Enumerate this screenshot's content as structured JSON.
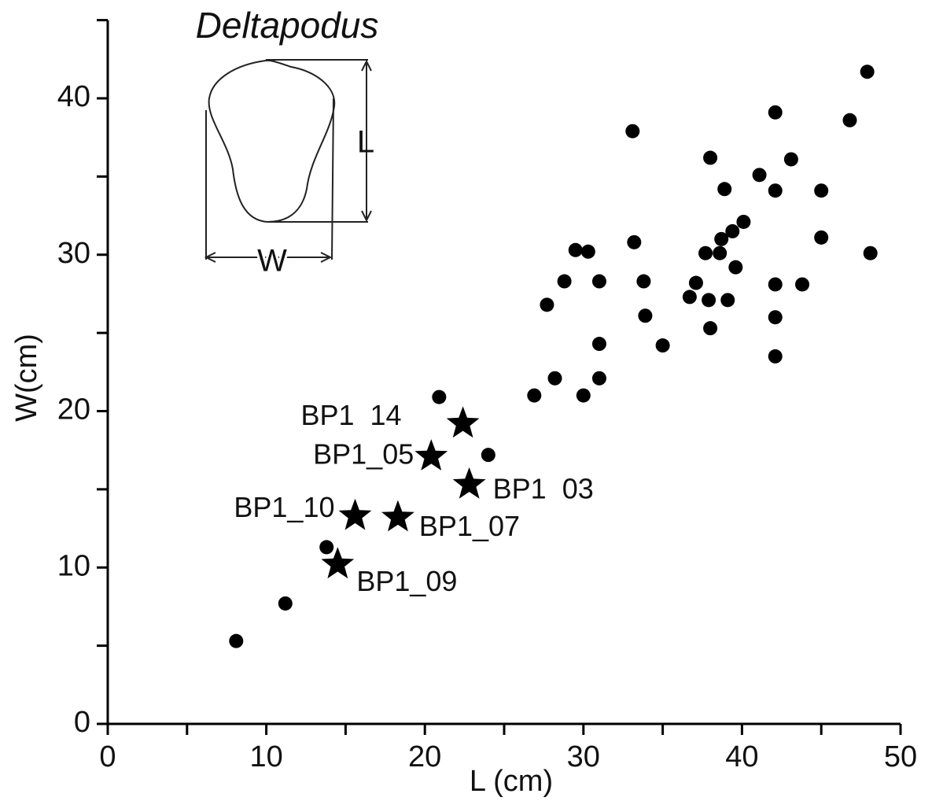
{
  "chart_data": {
    "type": "scatter",
    "x_label": "L (cm)",
    "y_label": "W(cm)",
    "xlim": [
      0,
      50
    ],
    "xticks": [
      0,
      10,
      20,
      30,
      40,
      50
    ],
    "minor_xticks": [
      5,
      15,
      25,
      35,
      45
    ],
    "ylim": [
      0,
      45
    ],
    "yticks": [
      0,
      10,
      20,
      30,
      40
    ],
    "minor_yticks": [
      5,
      15,
      25,
      35,
      45
    ],
    "color": "#000000",
    "grid": false,
    "points": {
      "marker": "circle",
      "x": [
        8.1,
        11.2,
        13.8,
        20.9,
        24.0,
        26.9,
        28.2,
        30.0,
        31.0,
        31.0,
        27.7,
        28.8,
        29.5,
        30.3,
        31.0,
        33.1,
        33.2,
        33.8,
        33.9,
        35.0,
        36.7,
        37.1,
        37.7,
        37.9,
        38.0,
        38.0,
        38.6,
        38.7,
        38.9,
        39.1,
        39.4,
        39.6,
        40.1,
        41.1,
        42.1,
        42.1,
        42.1,
        42.1,
        42.1,
        43.1,
        43.8,
        45.0,
        45.0,
        46.8,
        47.9,
        48.1
      ],
      "y": [
        5.3,
        7.7,
        11.3,
        20.9,
        17.2,
        21.0,
        22.1,
        21.0,
        22.1,
        24.3,
        26.8,
        28.3,
        30.3,
        30.2,
        28.3,
        37.9,
        30.8,
        28.3,
        26.1,
        24.2,
        27.3,
        28.2,
        30.1,
        27.1,
        25.3,
        36.2,
        30.1,
        31.0,
        34.2,
        27.1,
        31.5,
        29.2,
        32.1,
        35.1,
        39.1,
        34.1,
        28.1,
        26.0,
        23.5,
        36.1,
        28.1,
        34.1,
        31.1,
        38.6,
        41.7,
        30.1
      ]
    },
    "stars": {
      "marker": "star",
      "labels": [
        "BP1  14",
        "BP1_05",
        "BP1  03",
        "BP1_10",
        "BP1_07",
        "BP1_09"
      ],
      "x": [
        22.4,
        20.4,
        22.8,
        15.6,
        18.3,
        14.5
      ],
      "y": [
        19.2,
        17.1,
        15.3,
        13.3,
        13.2,
        10.2
      ]
    },
    "inset": {
      "title": "Deltapodus",
      "length_label": "L",
      "width_label": "W"
    }
  }
}
